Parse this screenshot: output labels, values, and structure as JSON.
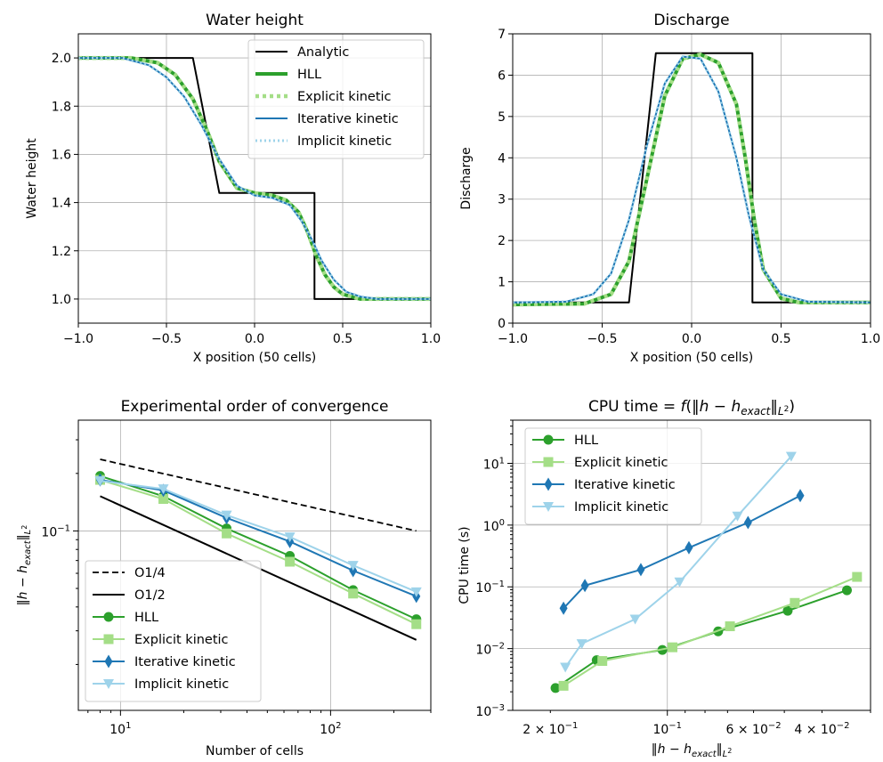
{
  "chart_data": [
    {
      "type": "line",
      "title": "Water height",
      "xlabel": "X position (50 cells)",
      "ylabel": "Water height",
      "xlim": [
        -1.0,
        1.0
      ],
      "ylim": [
        0.9,
        2.1
      ],
      "xticks": [
        "−1.0",
        "−0.5",
        "0.0",
        "0.5",
        "1.0"
      ],
      "yticks": [
        "1.0",
        "1.2",
        "1.4",
        "1.6",
        "1.8",
        "2.0"
      ],
      "grid": true,
      "legend_position": "top-right",
      "series": [
        {
          "name": "Analytic",
          "color": "#000000",
          "style": "solid",
          "x": [
            -1.0,
            -0.35,
            -0.2,
            0.34,
            0.34,
            1.0
          ],
          "y": [
            2.0,
            2.0,
            1.44,
            1.44,
            1.0,
            1.0
          ]
        },
        {
          "name": "HLL",
          "color": "#2ca02c",
          "style": "solid-thick",
          "x": [
            -1.0,
            -0.7,
            -0.55,
            -0.45,
            -0.35,
            -0.27,
            -0.2,
            -0.1,
            0.0,
            0.1,
            0.18,
            0.25,
            0.3,
            0.35,
            0.4,
            0.45,
            0.5,
            0.6,
            0.7,
            1.0
          ],
          "y": [
            2.0,
            2.0,
            1.98,
            1.93,
            1.83,
            1.7,
            1.57,
            1.46,
            1.44,
            1.43,
            1.41,
            1.36,
            1.28,
            1.18,
            1.1,
            1.05,
            1.02,
            1.0,
            1.0,
            1.0
          ]
        },
        {
          "name": "Explicit kinetic",
          "color": "#a4de87",
          "style": "dotted-thick",
          "x": [
            -1.0,
            -0.7,
            -0.55,
            -0.45,
            -0.35,
            -0.27,
            -0.2,
            -0.1,
            0.0,
            0.1,
            0.18,
            0.25,
            0.3,
            0.35,
            0.4,
            0.45,
            0.5,
            0.6,
            0.7,
            1.0
          ],
          "y": [
            2.0,
            2.0,
            1.98,
            1.93,
            1.83,
            1.7,
            1.57,
            1.46,
            1.44,
            1.43,
            1.41,
            1.36,
            1.28,
            1.18,
            1.1,
            1.05,
            1.02,
            1.0,
            1.0,
            1.0
          ]
        },
        {
          "name": "Iterative kinetic",
          "color": "#1f77b4",
          "style": "solid",
          "x": [
            -1.0,
            -0.75,
            -0.6,
            -0.5,
            -0.4,
            -0.3,
            -0.2,
            -0.1,
            0.0,
            0.1,
            0.2,
            0.27,
            0.33,
            0.38,
            0.45,
            0.52,
            0.6,
            0.7,
            1.0
          ],
          "y": [
            2.0,
            2.0,
            1.97,
            1.92,
            1.84,
            1.72,
            1.58,
            1.47,
            1.43,
            1.42,
            1.39,
            1.32,
            1.24,
            1.16,
            1.08,
            1.03,
            1.01,
            1.0,
            1.0
          ]
        },
        {
          "name": "Implicit kinetic",
          "color": "#9ed3ea",
          "style": "dotted",
          "x": [
            -1.0,
            -0.75,
            -0.6,
            -0.5,
            -0.4,
            -0.3,
            -0.2,
            -0.1,
            0.0,
            0.1,
            0.2,
            0.27,
            0.33,
            0.38,
            0.45,
            0.52,
            0.6,
            0.7,
            1.0
          ],
          "y": [
            2.0,
            2.0,
            1.97,
            1.92,
            1.84,
            1.72,
            1.58,
            1.47,
            1.43,
            1.42,
            1.39,
            1.32,
            1.24,
            1.16,
            1.08,
            1.03,
            1.01,
            1.0,
            1.0
          ]
        }
      ]
    },
    {
      "type": "line",
      "title": "Discharge",
      "xlabel": "X position (50 cells)",
      "ylabel": "Discharge",
      "xlim": [
        -1.0,
        1.0
      ],
      "ylim": [
        0,
        7
      ],
      "xticks": [
        "−1.0",
        "−0.5",
        "0.0",
        "0.5",
        "1.0"
      ],
      "yticks": [
        "0",
        "1",
        "2",
        "3",
        "4",
        "5",
        "6",
        "7"
      ],
      "grid": true,
      "series": [
        {
          "name": "Analytic",
          "color": "#000000",
          "style": "solid",
          "x": [
            -1.0,
            -0.35,
            -0.2,
            0.34,
            0.34,
            1.0
          ],
          "y": [
            0.5,
            0.5,
            6.53,
            6.53,
            0.5,
            0.5
          ]
        },
        {
          "name": "HLL",
          "color": "#2ca02c",
          "style": "solid-thick",
          "x": [
            -1.0,
            -0.6,
            -0.45,
            -0.35,
            -0.25,
            -0.15,
            -0.05,
            0.05,
            0.15,
            0.25,
            0.3,
            0.35,
            0.4,
            0.5,
            0.6,
            1.0
          ],
          "y": [
            0.45,
            0.47,
            0.7,
            1.5,
            3.5,
            5.5,
            6.4,
            6.5,
            6.3,
            5.3,
            4.0,
            2.5,
            1.3,
            0.6,
            0.5,
            0.5
          ]
        },
        {
          "name": "Explicit kinetic",
          "color": "#a4de87",
          "style": "dotted-thick",
          "x": [
            -1.0,
            -0.6,
            -0.45,
            -0.35,
            -0.25,
            -0.15,
            -0.05,
            0.05,
            0.15,
            0.25,
            0.3,
            0.35,
            0.4,
            0.5,
            0.6,
            1.0
          ],
          "y": [
            0.45,
            0.47,
            0.7,
            1.5,
            3.5,
            5.5,
            6.4,
            6.5,
            6.3,
            5.3,
            4.0,
            2.5,
            1.3,
            0.6,
            0.5,
            0.5
          ]
        },
        {
          "name": "Iterative kinetic",
          "color": "#1f77b4",
          "style": "solid",
          "x": [
            -1.0,
            -0.7,
            -0.55,
            -0.45,
            -0.35,
            -0.25,
            -0.15,
            -0.05,
            0.05,
            0.15,
            0.25,
            0.32,
            0.4,
            0.5,
            0.65,
            1.0
          ],
          "y": [
            0.5,
            0.52,
            0.7,
            1.2,
            2.5,
            4.3,
            5.8,
            6.45,
            6.4,
            5.6,
            4.0,
            2.6,
            1.3,
            0.7,
            0.52,
            0.5
          ]
        },
        {
          "name": "Implicit kinetic",
          "color": "#9ed3ea",
          "style": "dotted",
          "x": [
            -1.0,
            -0.7,
            -0.55,
            -0.45,
            -0.35,
            -0.25,
            -0.15,
            -0.05,
            0.05,
            0.15,
            0.25,
            0.32,
            0.4,
            0.5,
            0.65,
            1.0
          ],
          "y": [
            0.5,
            0.52,
            0.7,
            1.2,
            2.5,
            4.3,
            5.8,
            6.45,
            6.4,
            5.6,
            4.0,
            2.6,
            1.3,
            0.7,
            0.52,
            0.5
          ]
        }
      ]
    },
    {
      "type": "line",
      "title": "Experimental order of convergence",
      "xlabel": "Number of cells",
      "ylabel": "‖h − h_exact‖_L²",
      "xscale": "log",
      "yscale": "log",
      "xlim": [
        6.3,
        300
      ],
      "ylim": [
        0.0115,
        0.38
      ],
      "xticks": [
        "10¹",
        "10²"
      ],
      "yticks": [
        "10⁻¹"
      ],
      "grid": true,
      "legend_position": "bottom-left",
      "series": [
        {
          "name": "O1/4",
          "color": "#000000",
          "style": "dashed",
          "x": [
            8,
            256
          ],
          "y": [
            0.237,
            0.1
          ]
        },
        {
          "name": "O1/2",
          "color": "#000000",
          "style": "solid",
          "x": [
            8,
            256
          ],
          "y": [
            0.152,
            0.0269
          ]
        },
        {
          "name": "HLL",
          "color": "#2ca02c",
          "marker": "circle",
          "x": [
            8,
            16,
            32,
            64,
            128,
            256
          ],
          "y": [
            0.194,
            0.152,
            0.103,
            0.074,
            0.049,
            0.0345
          ]
        },
        {
          "name": "Explicit kinetic",
          "color": "#a4de87",
          "marker": "square",
          "x": [
            8,
            16,
            32,
            64,
            128,
            256
          ],
          "y": [
            0.185,
            0.147,
            0.097,
            0.069,
            0.047,
            0.0325
          ]
        },
        {
          "name": "Iterative kinetic",
          "color": "#1f77b4",
          "marker": "diamond",
          "x": [
            8,
            16,
            32,
            64,
            128,
            256
          ],
          "y": [
            0.185,
            0.163,
            0.117,
            0.088,
            0.062,
            0.0455
          ]
        },
        {
          "name": "Implicit kinetic",
          "color": "#9ed3ea",
          "marker": "triangle-down",
          "x": [
            8,
            16,
            32,
            64,
            128,
            256
          ],
          "y": [
            0.183,
            0.166,
            0.121,
            0.093,
            0.066,
            0.048
          ]
        }
      ]
    },
    {
      "type": "line",
      "title": "CPU time = f(‖h − h_exact‖_L²)",
      "xlabel": "‖h − h_exact‖_L²",
      "ylabel": "CPU time (s)",
      "xscale": "log-inverted",
      "yscale": "log",
      "xlim": [
        0.25,
        0.03
      ],
      "ylim": [
        0.001,
        50
      ],
      "xticks": [
        "2 × 10⁻¹",
        "10⁻¹",
        "6 × 10⁻²",
        "4 × 10⁻²"
      ],
      "yticks": [
        "10⁻³",
        "10⁻²",
        "10⁻¹",
        "10⁰",
        "10¹"
      ],
      "grid": true,
      "legend_position": "top-left",
      "series": [
        {
          "name": "HLL",
          "color": "#2ca02c",
          "marker": "circle",
          "x": [
            0.194,
            0.152,
            0.103,
            0.074,
            0.049,
            0.0345
          ],
          "y": [
            0.0023,
            0.0065,
            0.0095,
            0.019,
            0.041,
            0.088
          ]
        },
        {
          "name": "Explicit kinetic",
          "color": "#a4de87",
          "marker": "square",
          "x": [
            0.185,
            0.147,
            0.097,
            0.069,
            0.047,
            0.0325
          ],
          "y": [
            0.0025,
            0.0063,
            0.0105,
            0.023,
            0.055,
            0.145
          ]
        },
        {
          "name": "Iterative kinetic",
          "color": "#1f77b4",
          "marker": "diamond",
          "x": [
            0.185,
            0.163,
            0.117,
            0.088,
            0.062,
            0.0455
          ],
          "y": [
            0.045,
            0.105,
            0.19,
            0.43,
            1.1,
            3.0
          ]
        },
        {
          "name": "Implicit kinetic",
          "color": "#9ed3ea",
          "marker": "triangle-down",
          "x": [
            0.183,
            0.166,
            0.121,
            0.093,
            0.066,
            0.048
          ],
          "y": [
            0.005,
            0.012,
            0.03,
            0.12,
            1.4,
            13.0
          ]
        }
      ]
    }
  ]
}
